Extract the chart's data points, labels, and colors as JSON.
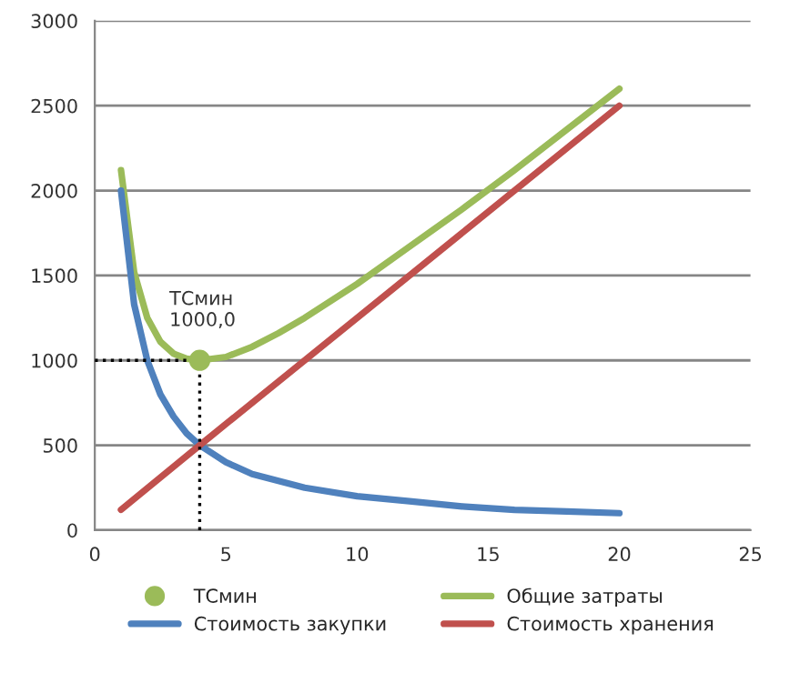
{
  "chart_data": {
    "type": "line",
    "xlim": [
      0,
      25
    ],
    "xticks": [
      0,
      5,
      10,
      15,
      20,
      25
    ],
    "ylim": [
      0,
      3000
    ],
    "yticks": [
      0,
      500,
      1000,
      1500,
      2000,
      2500,
      3000
    ],
    "grid": "y",
    "legend": "bottom",
    "marker": "none",
    "line_style": "solid",
    "series": [
      {
        "name": "ТСмин",
        "type": "scatter",
        "marker": "circle",
        "color": "#9bbb59",
        "x": [
          4
        ],
        "values": [
          1000
        ]
      },
      {
        "name": "Общие затраты",
        "color": "#9bbb59",
        "x": [
          1,
          1.5,
          2,
          2.5,
          3,
          3.5,
          4,
          5,
          6,
          7,
          8,
          10,
          12,
          14,
          16,
          18,
          20
        ],
        "values": [
          2120,
          1520,
          1250,
          1110,
          1040,
          1010,
          1000,
          1020,
          1080,
          1160,
          1250,
          1450,
          1670,
          1890,
          2120,
          2360,
          2600
        ]
      },
      {
        "name": "Стоимость закупки",
        "color": "#4f81bd",
        "x": [
          1,
          1.5,
          2,
          2.5,
          3,
          3.5,
          4,
          5,
          6,
          7,
          8,
          10,
          12,
          14,
          16,
          18,
          20
        ],
        "values": [
          2000,
          1330,
          1000,
          800,
          670,
          570,
          500,
          400,
          330,
          290,
          250,
          200,
          170,
          140,
          120,
          110,
          100
        ]
      },
      {
        "name": "Стоимость хранения",
        "color": "#c0504d",
        "x": [
          1,
          4,
          20
        ],
        "values": [
          120,
          500,
          2500
        ]
      }
    ],
    "ref_lines": [
      {
        "axis": "x",
        "value": 4,
        "color": "#000000",
        "line_style": "dotted"
      },
      {
        "axis": "y",
        "value": 1000,
        "color": "#000000",
        "line_style": "dotted"
      }
    ],
    "annotations": [
      {
        "text": "ТСмин\n1000,0",
        "x": 4,
        "y": 1000
      }
    ]
  }
}
